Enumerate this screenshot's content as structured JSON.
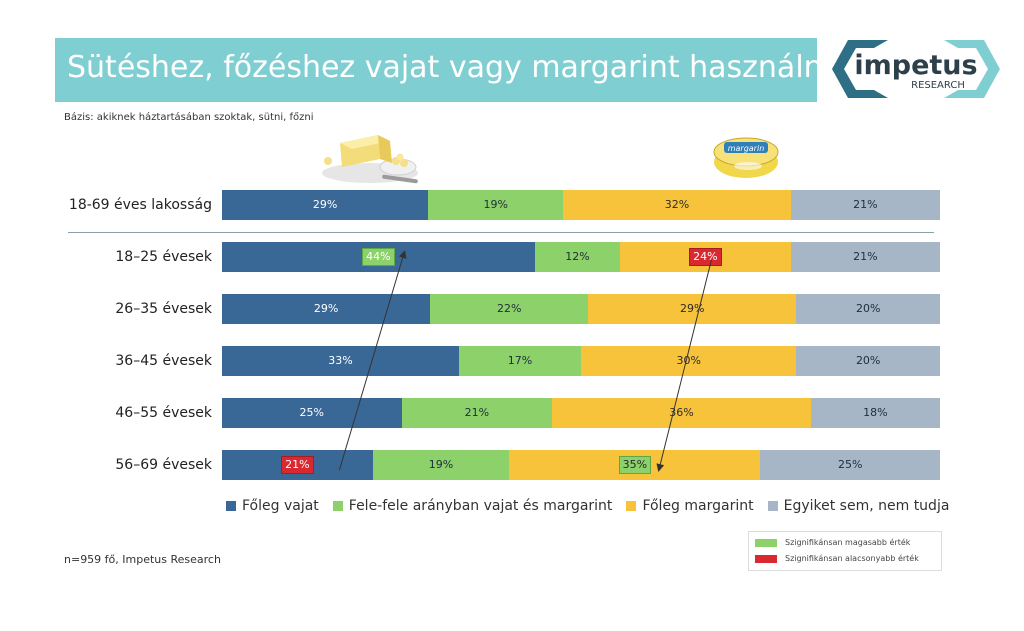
{
  "title": "Sütéshez, főzéshez vajat vagy margarint használnak?",
  "base_note": "Bázis: akiknek háztartásában szoktak, sütni, főzni",
  "logo": {
    "word": "impetus",
    "sub": "RESEARCH"
  },
  "footnote": "n=959 fő, Impetus Research",
  "margarine_label": "margarin",
  "significance_legend": {
    "high": "Szignifikánsan magasabb érték",
    "low": "Szignifikánsan alacsonyabb érték",
    "high_color": "#8cd16a",
    "low_color": "#d9282f"
  },
  "chart_data": {
    "type": "bar",
    "orientation": "horizontal-stacked-100",
    "title": "Sütéshez, főzéshez vajat vagy margarint használnak?",
    "categories": [
      "18-69 éves lakosság",
      "18–25 évesek",
      "26–35 évesek",
      "36–45 évesek",
      "46–55 évesek",
      "56–69 évesek"
    ],
    "series": [
      {
        "name": "Főleg vajat",
        "color": "#3a6896",
        "values": [
          29,
          44,
          29,
          33,
          25,
          21
        ]
      },
      {
        "name": "Fele-fele arányban vajat és margarint",
        "color": "#8cd16a",
        "values": [
          19,
          12,
          22,
          17,
          21,
          19
        ]
      },
      {
        "name": "Főleg margarint",
        "color": "#f7c33a",
        "values": [
          32,
          24,
          29,
          30,
          36,
          35
        ]
      },
      {
        "name": "Egyiket sem, nem tudja",
        "color": "#a6b6c6",
        "values": [
          21,
          21,
          20,
          20,
          18,
          25
        ]
      }
    ],
    "value_labels": [
      [
        "29%",
        "19%",
        "32%",
        "21%"
      ],
      [
        "44%",
        "12%",
        "24%",
        "21%"
      ],
      [
        "29%",
        "22%",
        "29%",
        "20%"
      ],
      [
        "33%",
        "17%",
        "30%",
        "20%"
      ],
      [
        "25%",
        "21%",
        "36%",
        "18%"
      ],
      [
        "21%",
        "19%",
        "35%",
        "25%"
      ]
    ],
    "significance": [
      [
        null,
        null,
        null,
        null
      ],
      [
        "high",
        null,
        "low",
        null
      ],
      [
        null,
        null,
        null,
        null
      ],
      [
        null,
        null,
        null,
        null
      ],
      [
        null,
        null,
        null,
        null
      ],
      [
        "low",
        null,
        "high",
        null
      ]
    ],
    "trend_arrows": [
      {
        "series": "Főleg vajat",
        "from": "56–69 évesek",
        "to": "18–25 évesek"
      },
      {
        "series": "Főleg margarint",
        "from": "18–25 évesek",
        "to": "56–69 évesek"
      }
    ],
    "legend_position": "bottom"
  }
}
